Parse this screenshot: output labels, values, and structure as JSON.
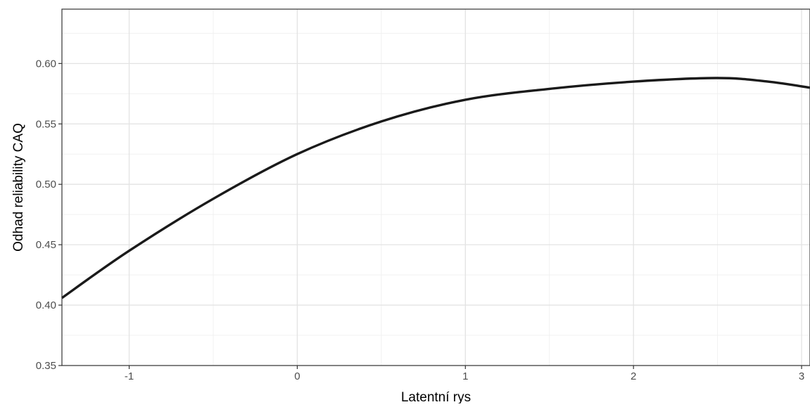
{
  "chart_data": {
    "type": "line",
    "title": "",
    "xlabel": "Latentní rys",
    "ylabel": "Odhad reliability CAQ",
    "xlim": [
      -1.4,
      3.05
    ],
    "ylim": [
      0.35,
      0.645
    ],
    "x_ticks": [
      -1,
      0,
      1,
      2,
      3
    ],
    "x_tick_labels": [
      "-1",
      "0",
      "1",
      "2",
      "3"
    ],
    "y_ticks": [
      0.35,
      0.4,
      0.45,
      0.5,
      0.55,
      0.6
    ],
    "y_tick_labels": [
      "0.35",
      "0.40",
      "0.45",
      "0.50",
      "0.55",
      "0.60"
    ],
    "grid": true,
    "theme": "bw",
    "series": [
      {
        "color": "#1a1a1a",
        "x": [
          -1.4,
          -1.0,
          -0.5,
          0.0,
          0.5,
          1.0,
          1.5,
          2.0,
          2.5,
          2.8,
          3.05
        ],
        "y": [
          0.406,
          0.445,
          0.488,
          0.525,
          0.552,
          0.57,
          0.579,
          0.585,
          0.588,
          0.585,
          0.58
        ]
      }
    ]
  }
}
